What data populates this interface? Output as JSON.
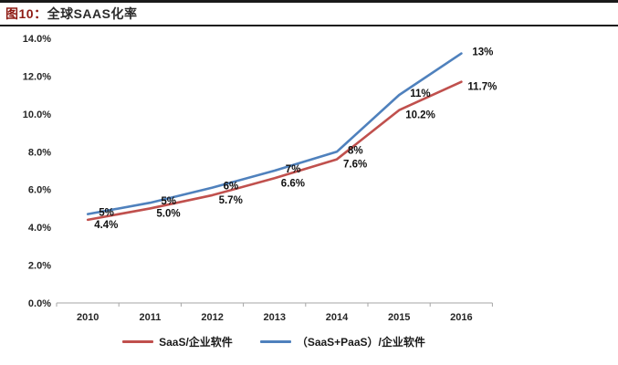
{
  "header": {
    "title_prefix": "图10：",
    "title": "全球SAAS化率"
  },
  "chart_data": {
    "type": "line",
    "title": "全球SAAS化率",
    "categories": [
      "2010",
      "2011",
      "2012",
      "2013",
      "2014",
      "2015",
      "2016"
    ],
    "series": [
      {
        "name": "SaaS/企业软件",
        "color": "#c0504d",
        "values": [
          4.4,
          5.0,
          5.7,
          6.6,
          7.6,
          10.2,
          11.7
        ],
        "labels": [
          "4.4%",
          "5.0%",
          "5.7%",
          "6.6%",
          "7.6%",
          "10.2%",
          "11.7%"
        ]
      },
      {
        "name": "（SaaS+PaaS）/企业软件",
        "color": "#4f81bd",
        "values": [
          4.7,
          5.3,
          6.1,
          7.0,
          8.0,
          11.0,
          13.2
        ],
        "labels": [
          "5%",
          "5%",
          "6%",
          "7%",
          "8%",
          "11%",
          "13%"
        ]
      }
    ],
    "xlabel": "",
    "ylabel": "",
    "ylim": [
      0,
      14
    ],
    "y_tick_step": 2,
    "y_ticks": [
      "0.0%",
      "2.0%",
      "4.0%",
      "6.0%",
      "8.0%",
      "10.0%",
      "12.0%",
      "14.0%"
    ],
    "grid": false,
    "axis_color": "#a6a6a6",
    "legend_position": "bottom"
  },
  "legend": {
    "items": [
      {
        "label": "SaaS/企业软件",
        "color": "#c0504d"
      },
      {
        "label": "（SaaS+PaaS）/企业软件",
        "color": "#4f81bd"
      }
    ]
  }
}
